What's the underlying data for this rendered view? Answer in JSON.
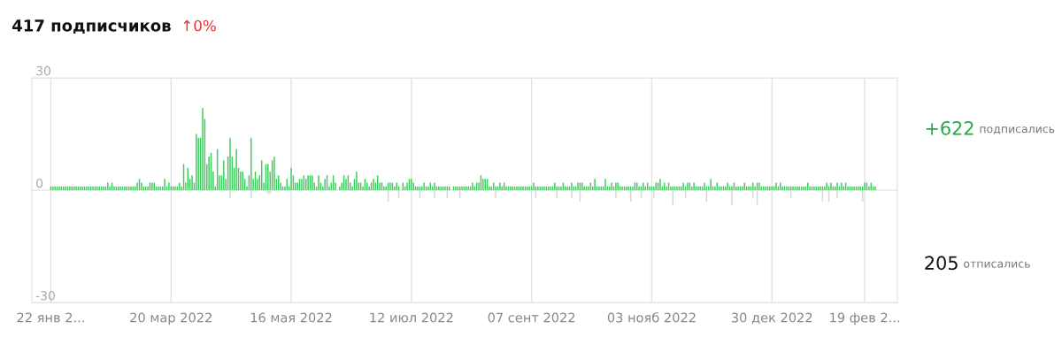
{
  "chart_data": {
    "type": "bar",
    "annotations": [
      "417 подписчиков",
      "↑0%",
      "+622",
      "подписались",
      "205",
      "отписались"
    ],
    "categories": [
      "22 янв 2...",
      null,
      null,
      null,
      null,
      null,
      null,
      null,
      null,
      null,
      null,
      null,
      null,
      null,
      null,
      null,
      null,
      null,
      null,
      null,
      null,
      null,
      null,
      null,
      null,
      null,
      null,
      null,
      null,
      null,
      null,
      null,
      null,
      null,
      null,
      null,
      null,
      null,
      null,
      null,
      null,
      null,
      null,
      null,
      null,
      null,
      null,
      null,
      null,
      null,
      null,
      null,
      null,
      null,
      null,
      null,
      null,
      "20 мар 2022",
      null,
      null,
      null,
      null,
      null,
      null,
      null,
      null,
      null,
      null,
      null,
      null,
      null,
      null,
      null,
      null,
      null,
      null,
      null,
      null,
      null,
      null,
      null,
      null,
      null,
      null,
      null,
      null,
      null,
      null,
      null,
      null,
      null,
      null,
      null,
      null,
      null,
      null,
      null,
      null,
      null,
      null,
      null,
      null,
      null,
      null,
      null,
      null,
      null,
      null,
      null,
      null,
      null,
      null,
      null,
      null,
      "16 мая 2022",
      null,
      null,
      null,
      null,
      null,
      null,
      null,
      null,
      null,
      null,
      null,
      null,
      null,
      null,
      null,
      null,
      null,
      null,
      null,
      null,
      null,
      null,
      null,
      null,
      null,
      null,
      null,
      null,
      null,
      null,
      null,
      null,
      null,
      null,
      null,
      null,
      null,
      null,
      null,
      null,
      null,
      null,
      null,
      null,
      null,
      null,
      null,
      null,
      null,
      null,
      null,
      null,
      null,
      null,
      null,
      null,
      "12 июл 2022",
      null,
      null,
      null,
      null,
      null,
      null,
      null,
      null,
      null,
      null,
      null,
      null,
      null,
      null,
      null,
      null,
      null,
      null,
      null,
      null,
      null,
      null,
      null,
      null,
      null,
      null,
      null,
      null,
      null,
      null,
      null,
      null,
      null,
      null,
      null,
      null,
      null,
      null,
      null,
      null,
      null,
      null,
      null,
      null,
      null,
      null,
      null,
      null,
      null,
      null,
      null,
      null,
      null,
      null,
      null,
      null,
      "07 сент 2022",
      null,
      null,
      null,
      null,
      null,
      null,
      null,
      null,
      null,
      null,
      null,
      null,
      null,
      null,
      null,
      null,
      null,
      null,
      null,
      null,
      null,
      null,
      null,
      null,
      null,
      null,
      null,
      null,
      null,
      null,
      null,
      null,
      null,
      null,
      null,
      null,
      null,
      null,
      null,
      null,
      null,
      null,
      null,
      null,
      null,
      null,
      null,
      null,
      null,
      null,
      null,
      null,
      null,
      null,
      null,
      null,
      "03 нояб 2022",
      null,
      null,
      null,
      null,
      null,
      null,
      null,
      null,
      null,
      null,
      null,
      null,
      null,
      null,
      null,
      null,
      null,
      null,
      null,
      null,
      null,
      null,
      null,
      null,
      null,
      null,
      null,
      null,
      null,
      null,
      null,
      null,
      null,
      null,
      null,
      null,
      null,
      null,
      null,
      null,
      null,
      null,
      null,
      null,
      null,
      null,
      null,
      null,
      null,
      null,
      null,
      null,
      null,
      null,
      null,
      null,
      "30 дек 2022",
      null,
      null,
      null,
      null,
      null,
      null,
      null,
      null,
      null,
      null,
      null,
      null,
      null,
      null,
      null,
      null,
      null,
      null,
      null,
      null,
      null,
      null,
      null,
      null,
      null,
      null,
      null,
      null,
      null,
      null,
      null,
      null,
      null,
      null,
      null,
      null,
      null,
      null,
      null,
      null,
      null,
      null,
      null,
      "19 фев 2...",
      null,
      null,
      null,
      null,
      null
    ],
    "ylim": [
      -30,
      30
    ],
    "yticks": [
      -30,
      0,
      30
    ],
    "grid": true,
    "series": [
      {
        "color": "#3dcd5d",
        "values": [
          1,
          1,
          1,
          1,
          1,
          1,
          1,
          1,
          1,
          1,
          1,
          1,
          1,
          1,
          1,
          1,
          1,
          1,
          1,
          1,
          1,
          1,
          1,
          1,
          1,
          1,
          1,
          2,
          1,
          2,
          1,
          1,
          1,
          1,
          1,
          1,
          1,
          1,
          1,
          1,
          1,
          2,
          3,
          2,
          1,
          1,
          1,
          2,
          2,
          2,
          1,
          1,
          1,
          1,
          3,
          1,
          2,
          1,
          1,
          1,
          1,
          2,
          1,
          7,
          2,
          6,
          3,
          4,
          2,
          15,
          14,
          14,
          22,
          19,
          7,
          9,
          10,
          5,
          1,
          11,
          4,
          4,
          8,
          3,
          9,
          14,
          9,
          6,
          11,
          6,
          5,
          5,
          3,
          1,
          4,
          14,
          3,
          5,
          3,
          4,
          8,
          2,
          7,
          7,
          5,
          8,
          9,
          3,
          4,
          2,
          1,
          1,
          3,
          1,
          6,
          4,
          2,
          2,
          3,
          3,
          4,
          3,
          4,
          4,
          4,
          2,
          1,
          4,
          2,
          1,
          3,
          4,
          1,
          2,
          4,
          2,
          0,
          1,
          2,
          4,
          3,
          4,
          2,
          1,
          3,
          5,
          2,
          2,
          1,
          3,
          2,
          1,
          2,
          3,
          2,
          4,
          2,
          2,
          1,
          1,
          2,
          2,
          2,
          1,
          2,
          1,
          0,
          2,
          1,
          2,
          3,
          3,
          2,
          1,
          1,
          1,
          1,
          2,
          1,
          1,
          2,
          1,
          2,
          1,
          1,
          1,
          1,
          1,
          1,
          1,
          0,
          1,
          1,
          1,
          1,
          1,
          1,
          1,
          1,
          1,
          2,
          1,
          2,
          2,
          4,
          3,
          3,
          3,
          1,
          1,
          2,
          1,
          1,
          2,
          1,
          2,
          1,
          1,
          1,
          1,
          1,
          1,
          1,
          1,
          1,
          1,
          1,
          1,
          1,
          2,
          1,
          1,
          1,
          1,
          1,
          1,
          1,
          1,
          1,
          2,
          1,
          1,
          1,
          2,
          1,
          1,
          1,
          2,
          1,
          1,
          2,
          2,
          2,
          1,
          1,
          1,
          2,
          1,
          3,
          1,
          1,
          1,
          1,
          3,
          1,
          1,
          2,
          1,
          2,
          2,
          1,
          1,
          1,
          1,
          1,
          1,
          1,
          2,
          2,
          1,
          1,
          2,
          1,
          2,
          1,
          1,
          1,
          2,
          2,
          3,
          1,
          2,
          1,
          2,
          1,
          1,
          1,
          1,
          1,
          1,
          2,
          1,
          2,
          2,
          1,
          2,
          1,
          1,
          1,
          1,
          2,
          1,
          1,
          3,
          1,
          1,
          2,
          1,
          1,
          1,
          1,
          2,
          1,
          1,
          2,
          1,
          1,
          1,
          1,
          2,
          1,
          1,
          1,
          2,
          1,
          2,
          2,
          1,
          1,
          1,
          1,
          1,
          1,
          1,
          2,
          1,
          2,
          1,
          1,
          1,
          1,
          1,
          1,
          1,
          1,
          1,
          1,
          1,
          1,
          2,
          1,
          1,
          1,
          1,
          1,
          1,
          1,
          1,
          2,
          1,
          2,
          1,
          1,
          2,
          1,
          2,
          1,
          2,
          1,
          1,
          1,
          1,
          1,
          1,
          1,
          1,
          2,
          2,
          1,
          2,
          1,
          1
        ]
      },
      {
        "color": "#d6d6d6",
        "values": [
          0,
          0,
          0,
          0,
          0,
          0,
          0,
          0,
          0,
          0,
          0,
          0,
          0,
          0,
          0,
          0,
          0,
          0,
          0,
          0,
          0,
          0,
          0,
          0,
          0,
          0,
          0,
          0,
          0,
          0,
          0,
          0,
          0,
          0,
          0,
          0,
          0,
          0,
          0,
          0,
          0,
          0,
          0,
          0,
          0,
          0,
          0,
          0,
          0,
          0,
          0,
          0,
          0,
          0,
          0,
          0,
          0,
          0,
          0,
          0,
          0,
          0,
          0,
          0,
          0,
          0,
          0,
          0,
          0,
          0,
          0,
          0,
          0,
          0,
          0,
          0,
          0,
          0,
          0,
          0,
          0,
          0,
          0,
          0,
          0,
          -2,
          0,
          0,
          0,
          0,
          0,
          0,
          0,
          0,
          0,
          -2,
          0,
          0,
          0,
          0,
          0,
          0,
          0,
          -1,
          -1,
          0,
          0,
          0,
          0,
          0,
          0,
          0,
          0,
          0,
          0,
          0,
          0,
          0,
          0,
          0,
          0,
          0,
          0,
          0,
          0,
          0,
          0,
          0,
          0,
          0,
          0,
          0,
          0,
          0,
          0,
          0,
          0,
          0,
          0,
          0,
          0,
          0,
          0,
          0,
          0,
          0,
          0,
          0,
          0,
          0,
          0,
          0,
          0,
          0,
          0,
          0,
          0,
          0,
          0,
          0,
          -3,
          0,
          0,
          0,
          0,
          -2,
          0,
          0,
          0,
          0,
          0,
          0,
          0,
          0,
          0,
          -2,
          0,
          0,
          0,
          0,
          0,
          0,
          -2,
          0,
          0,
          0,
          0,
          0,
          -2,
          0,
          0,
          0,
          0,
          0,
          -2,
          0,
          0,
          0,
          0,
          0,
          0,
          0,
          0,
          0,
          0,
          0,
          0,
          0,
          0,
          0,
          0,
          -2,
          0,
          0,
          0,
          0,
          0,
          0,
          0,
          0,
          0,
          0,
          0,
          0,
          0,
          0,
          0,
          0,
          0,
          0,
          -2,
          0,
          0,
          0,
          0,
          0,
          0,
          0,
          0,
          0,
          -2,
          0,
          0,
          0,
          0,
          0,
          0,
          -2,
          0,
          0,
          0,
          -3,
          0,
          0,
          0,
          0,
          0,
          0,
          0,
          0,
          0,
          0,
          0,
          0,
          0,
          0,
          0,
          0,
          -2,
          0,
          0,
          0,
          0,
          0,
          0,
          -3,
          0,
          0,
          0,
          0,
          -2,
          0,
          0,
          0,
          0,
          0,
          -2,
          0,
          0,
          0,
          0,
          0,
          0,
          0,
          0,
          -4,
          0,
          0,
          0,
          0,
          0,
          -2,
          0,
          0,
          0,
          0,
          0,
          0,
          0,
          0,
          0,
          -3,
          0,
          0,
          0,
          0,
          0,
          0,
          0,
          0,
          0,
          0,
          0,
          -4,
          0,
          0,
          0,
          0,
          0,
          0,
          0,
          0,
          0,
          -2,
          0,
          -4,
          0,
          0,
          0,
          0,
          0,
          0,
          0,
          0,
          0,
          0,
          0,
          0,
          0,
          0,
          0,
          -2,
          0,
          0,
          0,
          0,
          0,
          0,
          0,
          0,
          0,
          0,
          0,
          0,
          0,
          0,
          -3,
          0,
          0,
          -3,
          0,
          0,
          0,
          -2,
          0,
          0,
          0,
          0,
          0,
          0,
          0,
          0,
          0,
          0,
          0,
          -3,
          0,
          0,
          0,
          0,
          0,
          0
        ]
      }
    ]
  }
}
